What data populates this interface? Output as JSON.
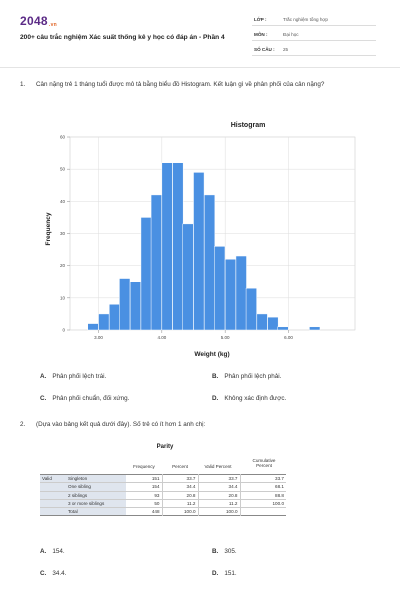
{
  "header": {
    "logo": "2048",
    "logo_suffix": ".vn",
    "title": "200+ câu trắc nghiệm Xác suất thống kê y học có đáp án - Phần 4",
    "meta": [
      {
        "key": "LỚP :",
        "value": "Trắc nghiệm tổng hợp"
      },
      {
        "key": "MÔN :",
        "value": "Đại học"
      },
      {
        "key": "SỐ CÂU :",
        "value": "25"
      }
    ]
  },
  "questions": [
    {
      "number": "1.",
      "text": "Cân nặng trẻ 1 tháng tuổi được mô tả bằng biểu đồ Histogram. Kết luận gì về phân phối của cân nặng?",
      "options": [
        {
          "letter": "A.",
          "text": "Phân phối lệch trái."
        },
        {
          "letter": "B.",
          "text": "Phân phối lệch phải."
        },
        {
          "letter": "C.",
          "text": "Phân phối chuẩn, đối xứng."
        },
        {
          "letter": "D.",
          "text": "Không xác định được."
        }
      ]
    },
    {
      "number": "2.",
      "text": "(Dựa vào bảng kết quả dưới đây). Số trẻ có ít hơn 1 anh chị:",
      "options": [
        {
          "letter": "A.",
          "text": "154."
        },
        {
          "letter": "B.",
          "text": "305."
        },
        {
          "letter": "C.",
          "text": "34.4."
        },
        {
          "letter": "D.",
          "text": "151."
        }
      ]
    }
  ],
  "chart_data": {
    "type": "bar",
    "title": "Histogram",
    "xlabel": "Weight (kg)",
    "ylabel": "Frequency",
    "xlim": [
      2.55,
      7.05
    ],
    "ylim": [
      0,
      60
    ],
    "x_ticks": [
      "3.00",
      "4.00",
      "5.00",
      "6.00"
    ],
    "x_tick_values": [
      3.0,
      4.0,
      5.0,
      6.0
    ],
    "y_ticks": [
      0,
      10,
      20,
      30,
      40,
      50,
      60
    ],
    "bin_width": 0.167,
    "bin_starts": [
      2.83,
      3.0,
      3.17,
      3.33,
      3.5,
      3.67,
      3.83,
      4.0,
      4.17,
      4.33,
      4.5,
      4.67,
      4.83,
      5.0,
      5.17,
      5.33,
      5.5,
      5.67,
      5.83,
      6.33
    ],
    "values": [
      2,
      5,
      8,
      16,
      15,
      35,
      42,
      52,
      52,
      33,
      49,
      42,
      26,
      22,
      23,
      13,
      5,
      4,
      1,
      1
    ],
    "bar_color": "#4a90e2",
    "grid": true
  },
  "table": {
    "title": "Parity",
    "headers": [
      "Frequency",
      "Percent",
      "Valid Percent",
      "Cumulative Percent"
    ],
    "group_label": "Valid",
    "rows": [
      {
        "label": "Singleton",
        "frequency": "151",
        "percent": "33.7",
        "valid_percent": "33.7",
        "cumulative": "33.7"
      },
      {
        "label": "One sibling",
        "frequency": "154",
        "percent": "34.4",
        "valid_percent": "34.4",
        "cumulative": "68.1"
      },
      {
        "label": "2 siblings",
        "frequency": "93",
        "percent": "20.8",
        "valid_percent": "20.8",
        "cumulative": "88.8"
      },
      {
        "label": "3 or more siblings",
        "frequency": "50",
        "percent": "11.2",
        "valid_percent": "11.2",
        "cumulative": "100.0"
      },
      {
        "label": "Total",
        "frequency": "448",
        "percent": "100.0",
        "valid_percent": "100.0",
        "cumulative": ""
      }
    ]
  }
}
